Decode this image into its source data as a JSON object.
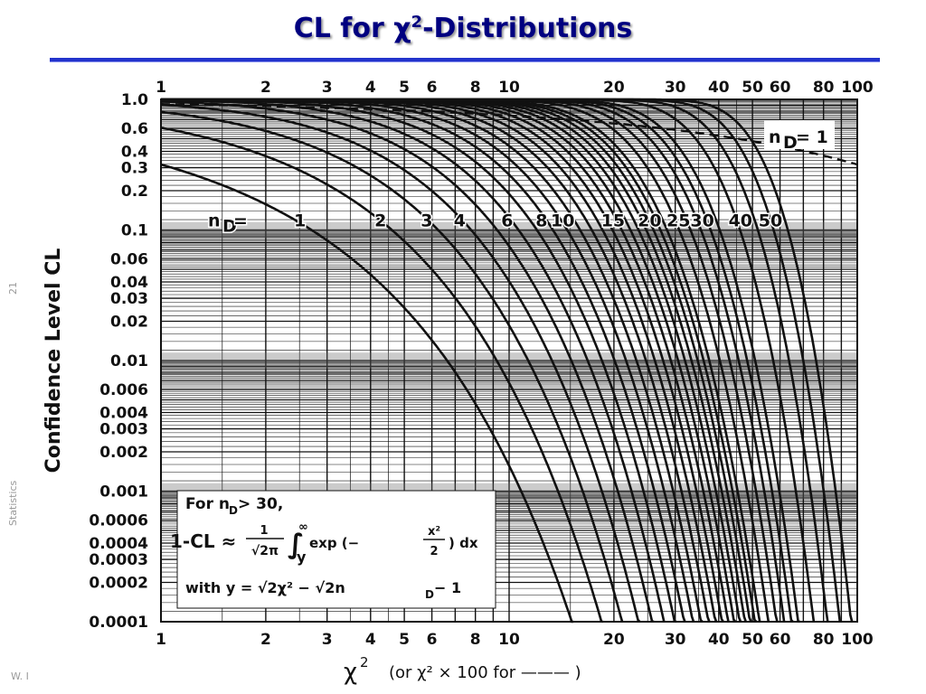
{
  "slide": {
    "title_prefix": "CL for ",
    "title_chi": "χ",
    "title_sup": "2",
    "title_suffix": "-Distributions",
    "side_page": "21",
    "side_course": "Statistics",
    "footer": "W. I"
  },
  "colors": {
    "title": "#000080",
    "rule": "#2233cc",
    "ink": "#111111",
    "side_text": "#9a9a9a"
  },
  "chart_data": {
    "type": "line",
    "xscale": "log",
    "yscale": "log",
    "xlim": [
      1,
      100
    ],
    "ylim": [
      0.0001,
      1.0
    ],
    "grid": true,
    "xlabel_main": "χ",
    "xlabel_sup": "2",
    "xlabel_note": "(or χ² × 100 for ——— )",
    "ylabel": "Confidence Level  CL",
    "x_ticks": [
      "1",
      "2",
      "3",
      "4",
      "5",
      "6",
      "8",
      "10",
      "20",
      "30",
      "40",
      "50",
      "60",
      "80",
      "100"
    ],
    "y_ticks": [
      "1.0",
      "0.6",
      "0.4",
      "0.3",
      "0.2",
      "0.1",
      "0.06",
      "0.04",
      "0.03",
      "0.02",
      "0.01",
      "0.006",
      "0.004",
      "0.003",
      "0.002",
      "0.001",
      "0.0006",
      "0.0004",
      "0.0003",
      "0.0002",
      "0.0001"
    ],
    "curve_label_prefix": "n",
    "curve_label_sub": "D",
    "curve_label_eq": " =",
    "curve_labels": [
      "1",
      "2",
      "3",
      "4",
      "6",
      "8",
      "10",
      "15",
      "20",
      "25",
      "30",
      "40",
      "50"
    ],
    "dashed_curve_label": "n_D = 1",
    "series_ndf": [
      1,
      2,
      3,
      4,
      5,
      6,
      7,
      8,
      9,
      10,
      11,
      12,
      13,
      14,
      15,
      16,
      17,
      18,
      19,
      20,
      22,
      24,
      26,
      28,
      30,
      35,
      40,
      45,
      50
    ],
    "dashed_series": {
      "ndf": 1,
      "x_multiplier": 100
    },
    "inset": {
      "line1": "For n",
      "line1_sub": "D",
      "line1_rest": " > 30,",
      "lhs": "1-CL ≈ ",
      "frac_num": "1",
      "frac_den": "√2π",
      "integral": "∫",
      "int_upper": "∞",
      "int_lower": "y",
      "integrand": " exp (− ",
      "integrand_frac_num": "x²",
      "integrand_frac_den": "2",
      "integrand_end": ") dx",
      "line3": "with y = √2χ² − √2n",
      "line3_sub": "D",
      "line3_end": " − 1"
    }
  }
}
